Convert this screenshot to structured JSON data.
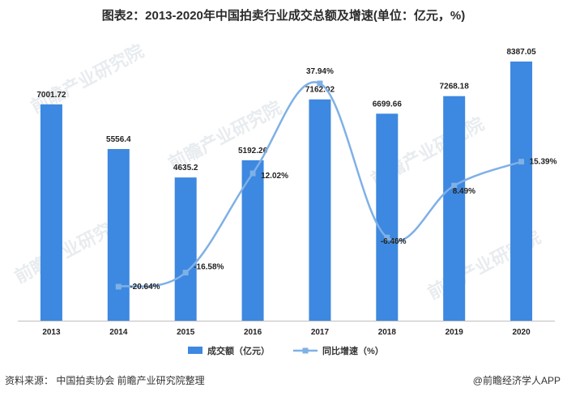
{
  "chart_data": {
    "type": "bar+line",
    "title": "图表2：2013-2020年中国拍卖行业成交总额及增速(单位：亿元，%)",
    "categories": [
      "2013",
      "2014",
      "2015",
      "2016",
      "2017",
      "2018",
      "2019",
      "2020"
    ],
    "series": [
      {
        "name": "成交额（亿元）",
        "type": "bar",
        "values": [
          7001.72,
          5556.4,
          4635.2,
          5192.26,
          7162.02,
          6699.66,
          7268.18,
          8387.05
        ],
        "labels": [
          "7001.72",
          "5556.4",
          "4635.2",
          "5192.26",
          "7162.02",
          "6699.66",
          "7268.18",
          "8387.05"
        ],
        "color": "#3d88e0"
      },
      {
        "name": "同比增速（%）",
        "type": "line",
        "axis": "secondary",
        "values": [
          null,
          -20.64,
          -16.58,
          12.02,
          37.94,
          -6.46,
          8.49,
          15.39
        ],
        "labels": [
          "",
          "-20.64%",
          "-16.58%",
          "12.02%",
          "37.94%",
          "-6.46%",
          "8.49%",
          "15.39%"
        ],
        "color": "#7fb0e6"
      }
    ],
    "y1lim": [
      0,
      9000
    ],
    "y2lim": [
      -30,
      45
    ]
  },
  "footer": {
    "source": "资料来源：  中国拍卖协会 前瞻产业研究院整理",
    "brand": "@前瞻经济学人APP"
  },
  "watermark": "前瞻产业研究院"
}
